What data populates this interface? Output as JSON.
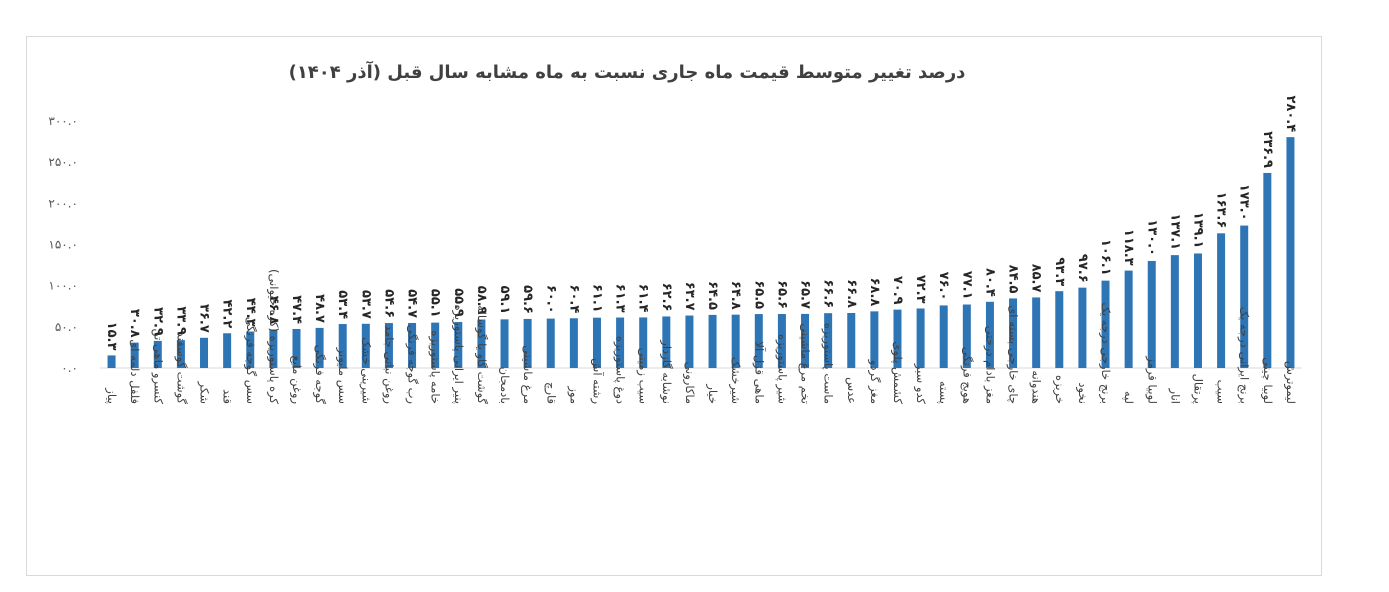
{
  "chart_data": {
    "type": "bar",
    "title": "درصد تغییر متوسط قیمت ماه جاری نسبت به ماه مشابه سال قبل (آذر ۱۴۰۴)",
    "xlabel": "",
    "ylabel": "",
    "ylim": [
      0,
      300
    ],
    "grid": false,
    "legend": "none",
    "bar_color": "#2e75b6",
    "yticks": [
      "۰.۰",
      "۵۰.۰",
      "۱۰۰.۰",
      "۱۵۰.۰",
      "۲۰۰.۰",
      "۲۵۰.۰",
      "۳۰۰.۰"
    ],
    "categories": [
      "پیاز",
      "فلفل دلمه ای",
      "کنسرو ماهی تن",
      "گوشت گوسفند",
      "شکر",
      "قند",
      "سس گوجه فرنگی",
      "کره پاستوریزه (کره حیوانی)",
      "روغن مایع",
      "گوجه فرنگی",
      "سس مایونز",
      "شیرینی خشک",
      "روغن نباتی جامد",
      "رب گوجه فرنگی",
      "خامه پاستوریزه",
      "پنیر ایرانی پاستوریزه",
      "گوشت گاو یا گوساله",
      "بادمجان",
      "مرغ ماشینی",
      "قارچ",
      "موز",
      "رشته آش",
      "دوغ پاستوریزه",
      "سیب زمینی",
      "نوشابه گازدار",
      "ماکارونی",
      "خیار",
      "شیرخشک",
      "ماهی قزل آلا",
      "شیر پاستوریزه",
      "تخم مرغ ماشینی",
      "ماست پاستوریزه",
      "عدس",
      "مغز گردو",
      "کشمش پلوی",
      "کدو سبز",
      "پسته",
      "هویج فرنگی",
      "مغز بادام درختی",
      "چای خارجی بسته ای",
      "هندوانه",
      "خربزه",
      "نخود",
      "برنج خارجی درجه یک",
      "لپه",
      "لوبیا قرمز",
      "انار",
      "پرتقال",
      "سیب",
      "برنج ایرانی درجه یک",
      "لوبیا چیتی",
      "لیموترش"
    ],
    "values": [
      15.3,
      30.8,
      32.9,
      33.9,
      36.7,
      42.2,
      44.3,
      46.8,
      47.4,
      48.7,
      53.4,
      53.7,
      54.6,
      54.7,
      55.1,
      55.9,
      58.9,
      59.1,
      59.6,
      60.0,
      60.4,
      61.1,
      61.3,
      61.4,
      62.6,
      63.7,
      64.5,
      64.8,
      65.5,
      65.6,
      65.7,
      66.6,
      66.8,
      68.8,
      70.9,
      72.3,
      76.0,
      77.1,
      80.4,
      84.5,
      85.7,
      93.3,
      97.6,
      106.1,
      118.3,
      130.0,
      137.1,
      139.1,
      163.6,
      173.0,
      236.9,
      280.4
    ],
    "data_labels": [
      "۱۵.۳",
      "۳۰.۸",
      "۳۲.۹",
      "۳۳.۹",
      "۳۶.۷",
      "۴۲.۲",
      "۴۴.۳",
      "۴۶.۸",
      "۴۷.۴",
      "۴۸.۷",
      "۵۳.۴",
      "۵۳.۷",
      "۵۴.۶",
      "۵۴.۷",
      "۵۵.۱",
      "۵۵.۹",
      "۵۸.۹",
      "۵۹.۱",
      "۵۹.۶",
      "۶۰.۰",
      "۶۰.۴",
      "۶۱.۱",
      "۶۱.۳",
      "۶۱.۴",
      "۶۲.۶",
      "۶۳.۷",
      "۶۴.۵",
      "۶۴.۸",
      "۶۵.۵",
      "۶۵.۶",
      "۶۵.۷",
      "۶۶.۶",
      "۶۶.۸",
      "۶۸.۸",
      "۷۰.۹",
      "۷۲.۳",
      "۷۶.۰",
      "۷۷.۱",
      "۸۰.۴",
      "۸۴.۵",
      "۸۵.۷",
      "۹۳.۳",
      "۹۷.۶",
      "۱۰۶.۱",
      "۱۱۸.۳",
      "۱۳۰.۰",
      "۱۳۷.۱",
      "۱۳۹.۱",
      "۱۶۳.۶",
      "۱۷۳.۰",
      "۲۳۶.۹",
      "۲۸۰.۴"
    ]
  }
}
